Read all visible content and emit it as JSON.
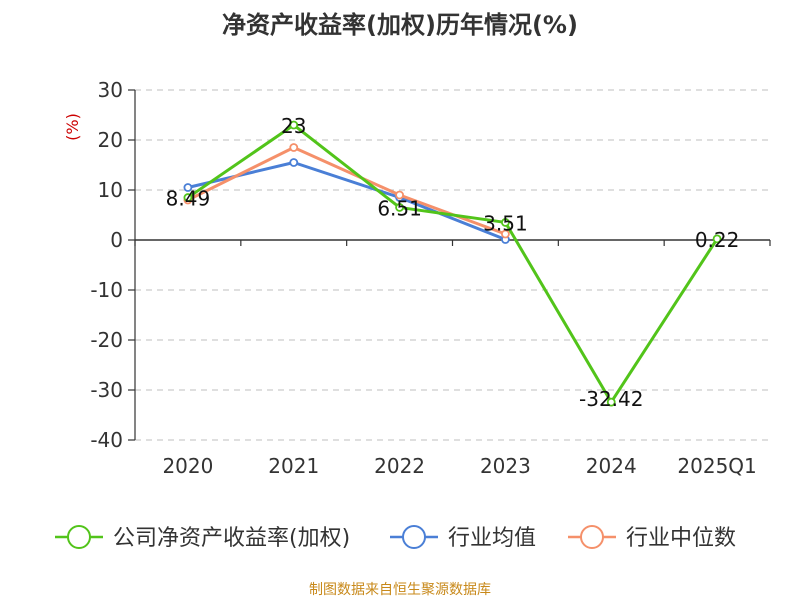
{
  "chart_data": {
    "type": "line",
    "title": "净资产收益率(加权)历年情况(%)",
    "ylabel": "(%)",
    "xlabel": "",
    "categories": [
      "2020",
      "2021",
      "2022",
      "2023",
      "2024",
      "2025Q1"
    ],
    "ylim": [
      -40,
      30
    ],
    "yticks": [
      30,
      20,
      10,
      0,
      -10,
      -20,
      -30,
      -40
    ],
    "grid": true,
    "legend_position": "bottom",
    "series": [
      {
        "name": "公司净资产收益率(加权)",
        "color": "#52c41a",
        "values": [
          8.49,
          23,
          6.51,
          3.51,
          -32.42,
          0.22
        ],
        "labels": [
          "8.49",
          "23",
          "6.51",
          "3.51",
          "-32.42",
          "0.22"
        ]
      },
      {
        "name": "行业均值",
        "color": "#4a7fd6",
        "values": [
          10.5,
          15.5,
          8.5,
          0.1,
          null,
          null
        ]
      },
      {
        "name": "行业中位数",
        "color": "#f5906a",
        "values": [
          8.0,
          18.5,
          9.0,
          1.2,
          null,
          null
        ]
      }
    ]
  },
  "source": {
    "text": "制图数据来自恒生聚源数据库",
    "color": "#c8891a"
  }
}
